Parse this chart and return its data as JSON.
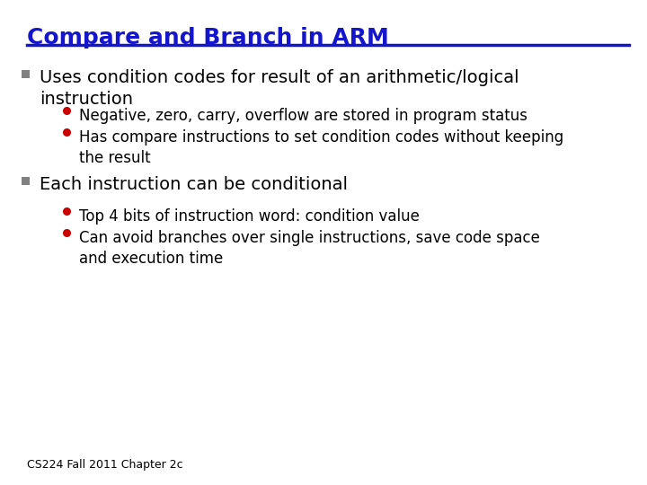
{
  "title": "Compare and Branch in ARM",
  "title_color": "#1515CC",
  "title_underline_color": "#1515CC",
  "background_color": "#FFFFFF",
  "bullet1_text": "Uses condition codes for result of an arithmetic/logical\ninstruction",
  "text_color": "#000000",
  "bullet_square_color": "#808080",
  "sub_bullets_1": [
    "Negative, zero, carry, overflow are stored in program status",
    "Has compare instructions to set condition codes without keeping\nthe result"
  ],
  "bullet2_text": "Each instruction can be conditional",
  "sub_bullets_2": [
    "Top 4 bits of instruction word: condition value",
    "Can avoid branches over single instructions, save code space\nand execution time"
  ],
  "sub_bullet_dot_color": "#CC0000",
  "footer_text": "CS224 Fall 2011 Chapter 2c",
  "footer_color": "#000000",
  "title_fontsize": 18,
  "bullet_main_fontsize": 14,
  "bullet_sub_fontsize": 12,
  "footer_fontsize": 9
}
